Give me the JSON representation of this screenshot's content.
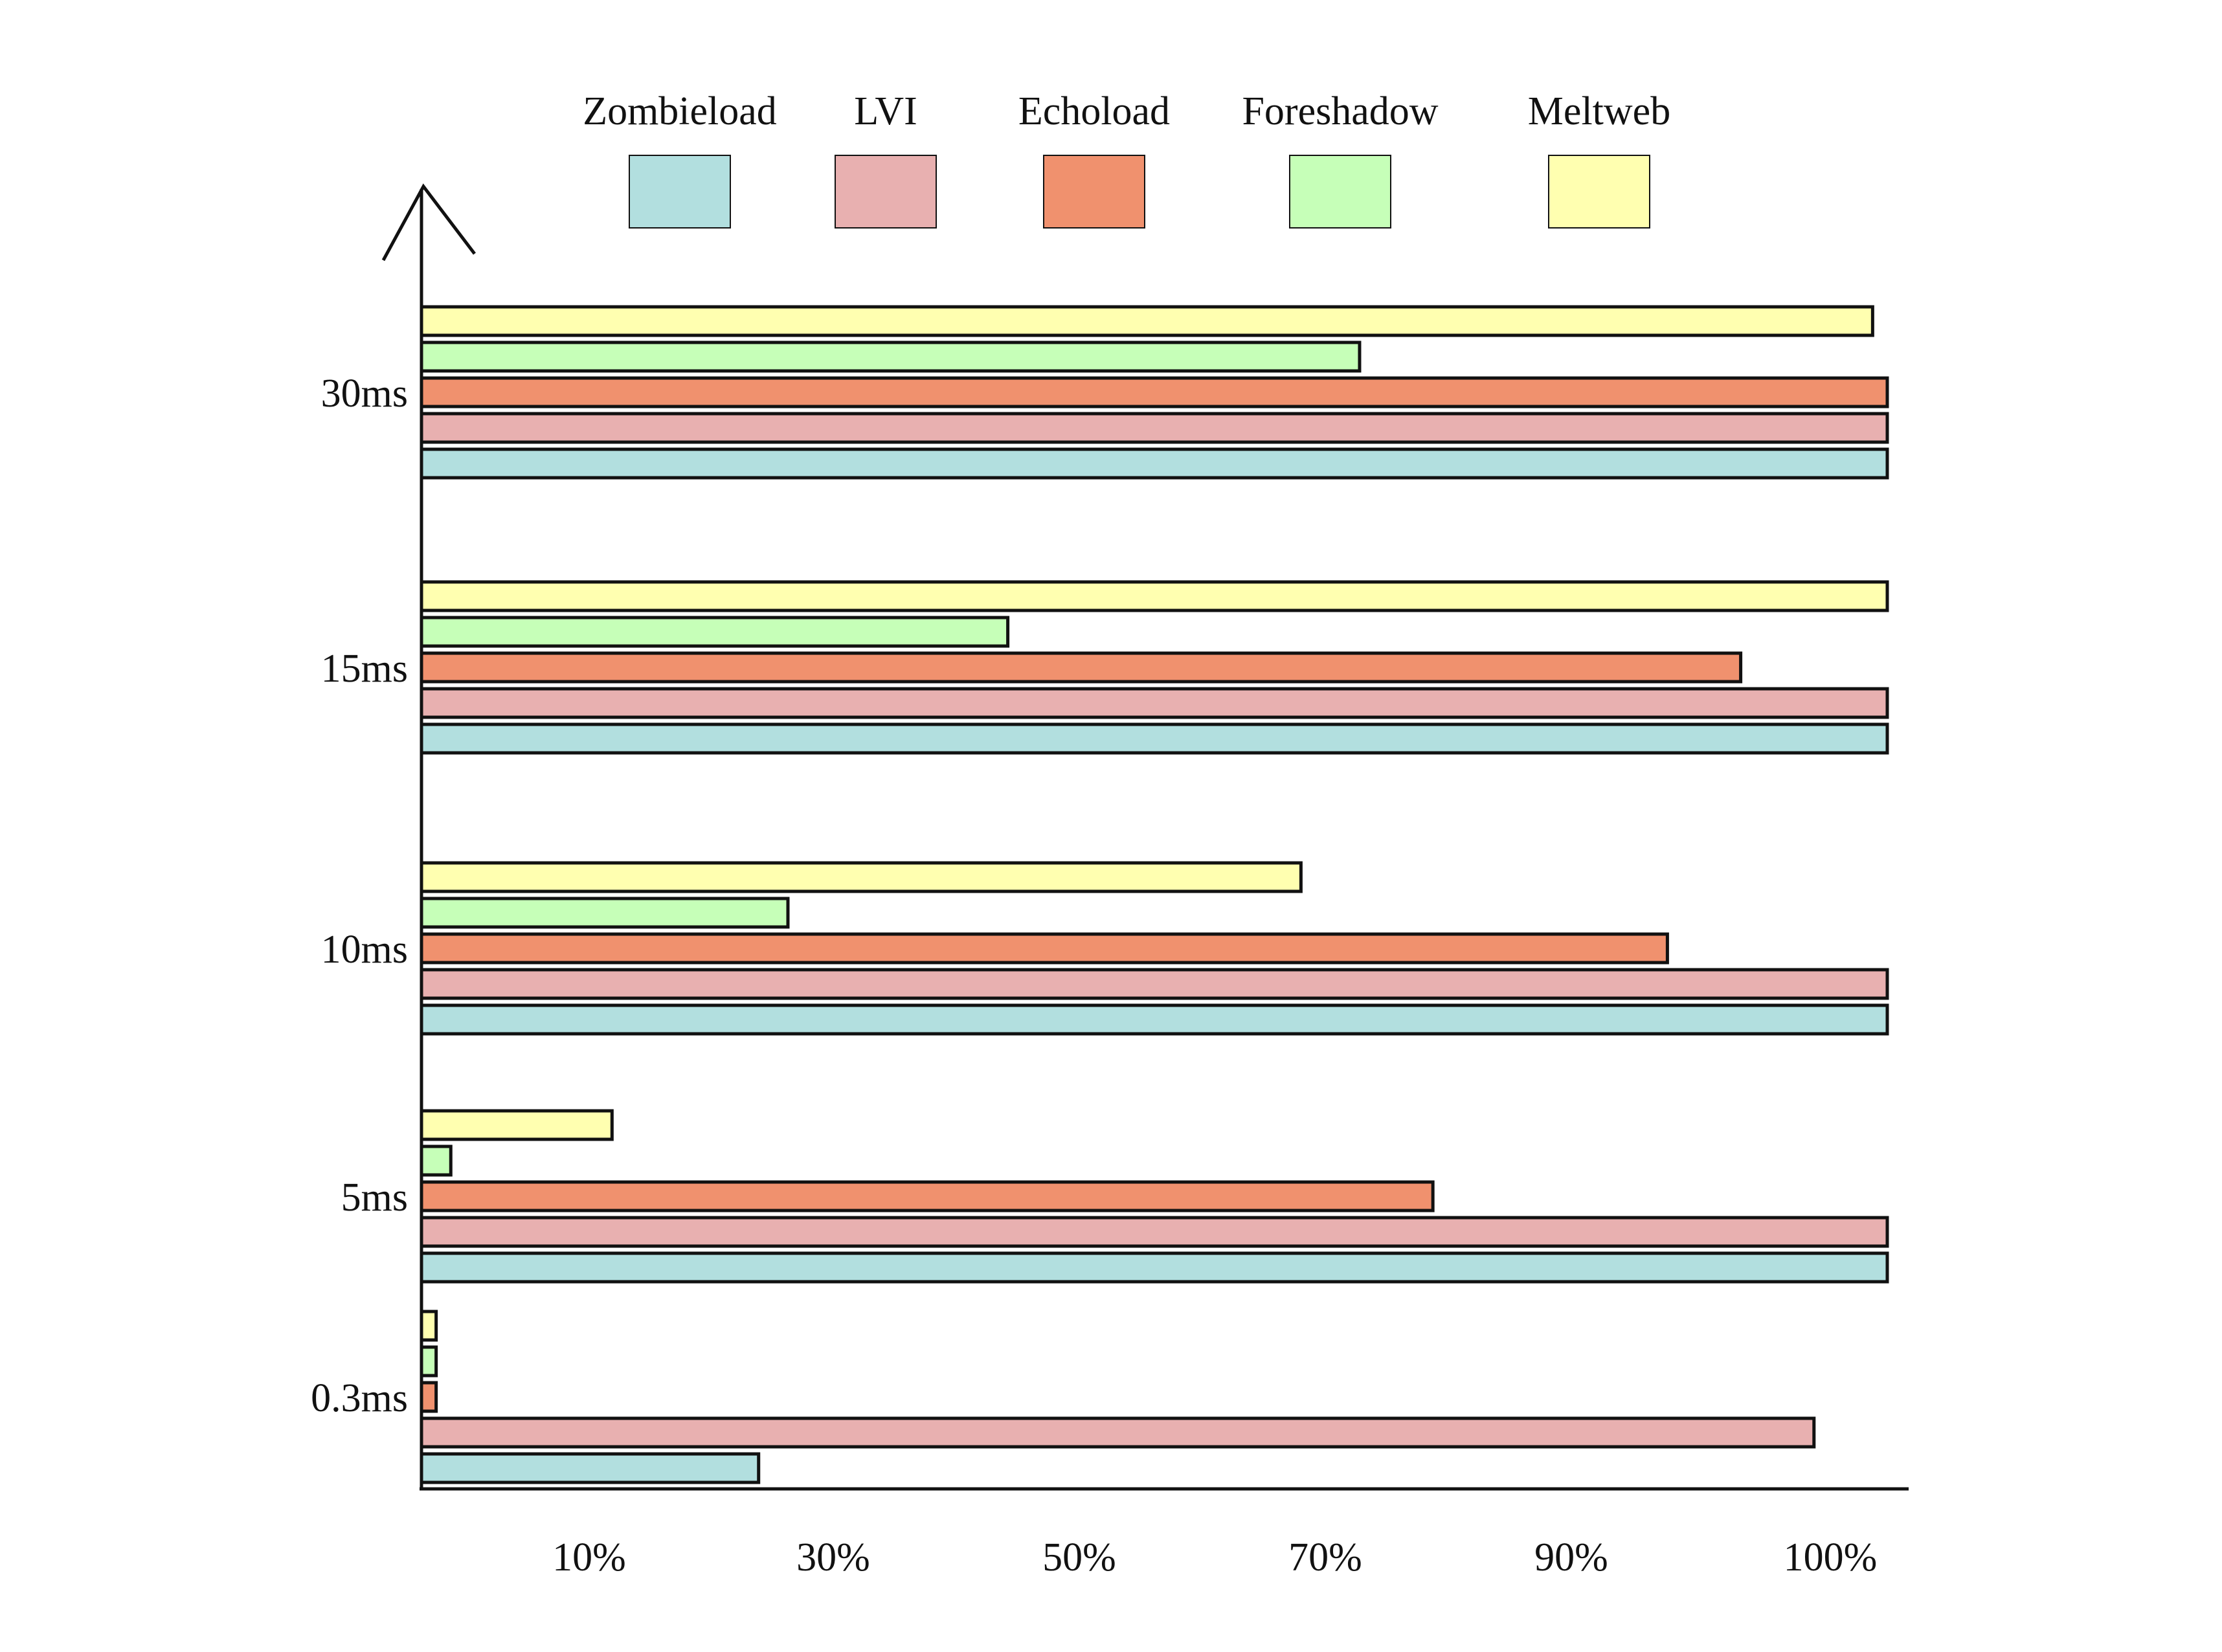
{
  "chart_data": {
    "type": "bar",
    "orientation": "horizontal",
    "title": "",
    "xlabel": "",
    "ylabel": "",
    "categories": [
      "0.3ms",
      "5ms",
      "10ms",
      "15ms",
      "30ms"
    ],
    "x_tick_labels": [
      "10%",
      "30%",
      "50%",
      "70%",
      "90%",
      "100%"
    ],
    "grid": false,
    "legend_position": "top",
    "series": [
      {
        "name": "Zombieload",
        "color": "#b2dfdf",
        "values": [
          23,
          100,
          100,
          100,
          100
        ]
      },
      {
        "name": "LVI",
        "color": "#e8b0b0",
        "values": [
          95,
          100,
          100,
          100,
          100
        ]
      },
      {
        "name": "Echoload",
        "color": "#f0916e",
        "values": [
          1,
          69,
          85,
          90,
          100
        ]
      },
      {
        "name": "Foreshadow",
        "color": "#c6ffb8",
        "values": [
          1,
          2,
          25,
          40,
          64
        ]
      },
      {
        "name": "Meltweb",
        "color": "#ffffb0",
        "values": [
          1,
          13,
          60,
          100,
          99
        ]
      }
    ]
  }
}
